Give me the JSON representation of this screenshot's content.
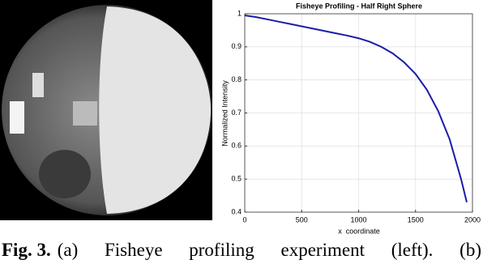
{
  "chart_data": {
    "type": "line",
    "title": "Fisheye Profiling - Half Right Sphere",
    "x_label": "x_coordinate",
    "y_label": "Normalized Intensity",
    "x": [
      0,
      100,
      200,
      300,
      400,
      500,
      600,
      700,
      800,
      900,
      1000,
      1100,
      1200,
      1300,
      1400,
      1500,
      1600,
      1700,
      1800,
      1900,
      1950
    ],
    "values": [
      0.995,
      0.99,
      0.983,
      0.976,
      0.969,
      0.962,
      0.955,
      0.948,
      0.941,
      0.934,
      0.926,
      0.915,
      0.9,
      0.88,
      0.853,
      0.818,
      0.77,
      0.705,
      0.62,
      0.5,
      0.43
    ],
    "color": "#1c1ca8",
    "xlim": [
      0,
      2000
    ],
    "xticks": [
      0,
      500,
      1000,
      1500,
      2000
    ],
    "ylim": [
      0.4,
      1
    ],
    "yticks": [
      0.4,
      0.5,
      0.6,
      0.7,
      0.8,
      0.9,
      1
    ],
    "grid": true
  },
  "caption": {
    "label": "Fig. 3.",
    "text": "(a) Fisheye profiling experiment (left). (b)"
  }
}
